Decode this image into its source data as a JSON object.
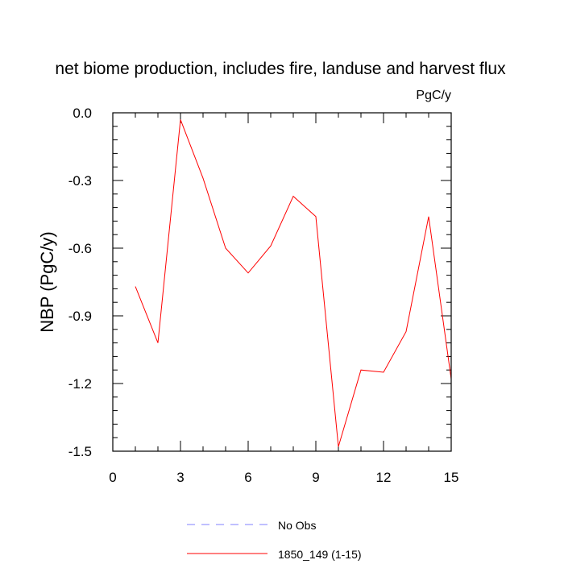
{
  "chart_data": {
    "type": "line",
    "title": "net biome production, includes fire, landuse and harvest flux",
    "units_label": "PgC/y",
    "ylabel": "NBP  (PgC/y)",
    "xlabel": "",
    "xlim": [
      0,
      15
    ],
    "ylim": [
      -1.5,
      0.0
    ],
    "x_ticks": [
      0,
      3,
      6,
      9,
      12,
      15
    ],
    "x_tick_labels": [
      "0",
      "3",
      "6",
      "9",
      "12",
      "15"
    ],
    "y_ticks": [
      0.0,
      -0.3,
      -0.6,
      -0.9,
      -1.2,
      -1.5
    ],
    "y_tick_labels": [
      "0.0",
      "-0.3",
      "-0.6",
      "-0.9",
      "-1.2",
      "-1.5"
    ],
    "grid": false,
    "legend_position": "bottom",
    "series": [
      {
        "name": "1850_149 (1-15)",
        "color": "#ff0000",
        "x": [
          1,
          2,
          3,
          4,
          5,
          6,
          7,
          8,
          9,
          10,
          11,
          12,
          13,
          14,
          15
        ],
        "values": [
          -0.77,
          -1.02,
          -0.03,
          -0.29,
          -0.6,
          -0.71,
          -0.59,
          -0.37,
          -0.46,
          -1.48,
          -1.14,
          -1.15,
          -0.97,
          -0.46,
          -1.18
        ]
      }
    ],
    "legend": [
      {
        "label": "No Obs",
        "color": "#8080ff",
        "dash": "dashed"
      },
      {
        "label": "1850_149 (1-15)",
        "color": "#ff0000",
        "dash": "solid"
      }
    ]
  }
}
